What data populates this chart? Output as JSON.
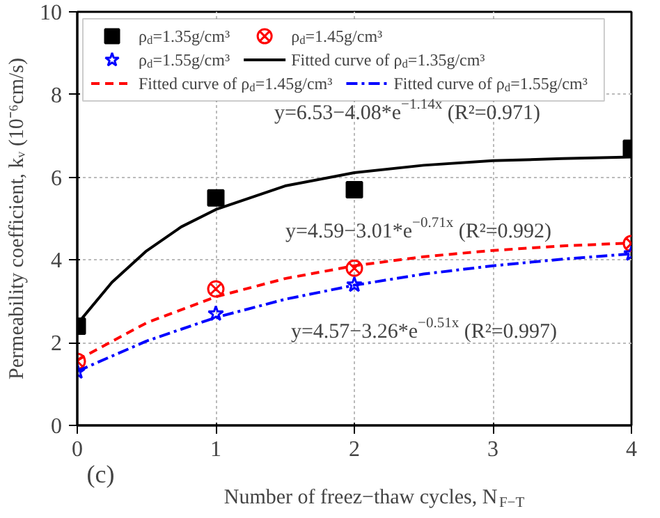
{
  "chart_data": {
    "type": "scatter",
    "xlabel": "Number of freez−thaw cycles, N$_{F−T}$",
    "ylabel": "Permeability coefficient, kᵥ (10⁻⁶cm/s)",
    "xlim": [
      0,
      4
    ],
    "xticks": [
      0,
      1,
      2,
      3,
      4
    ],
    "ylim": [
      0,
      10
    ],
    "yticks": [
      0,
      2,
      4,
      6,
      8,
      10
    ],
    "grid": true,
    "legend": "top",
    "series": [
      {
        "name": "ρ$_{d}$=1.35g/cm³",
        "marker": "square",
        "color": "#000000",
        "x": [
          0,
          1,
          2,
          4
        ],
        "values": [
          2.4,
          5.5,
          5.7,
          6.7
        ]
      },
      {
        "name": "ρ$_{d}$=1.45g/cm³",
        "marker": "cross",
        "color": "#ff0000",
        "x": [
          0,
          1,
          2,
          4
        ],
        "values": [
          1.55,
          3.3,
          3.8,
          4.4
        ]
      },
      {
        "name": "ρ$_{d}$=1.55g/cm³",
        "marker": "star",
        "color": "#0000ff",
        "x": [
          0,
          1,
          2,
          4
        ],
        "values": [
          1.3,
          2.7,
          3.4,
          4.15
        ]
      },
      {
        "name": "Fitted curve of ρ$_{d}$=1.35g/cm³",
        "type": "line",
        "line_style": "solid",
        "color": "#000000",
        "x": [
          0,
          0.25,
          0.5,
          0.75,
          1,
          1.5,
          2,
          2.5,
          3,
          3.5,
          4
        ],
        "values": [
          2.45,
          3.46,
          4.22,
          4.8,
          5.22,
          5.79,
          6.11,
          6.29,
          6.4,
          6.45,
          6.49
        ]
      },
      {
        "name": "Fitted curve of ρ$_{d}$=1.45g/cm³",
        "type": "line",
        "line_style": "dashed",
        "color": "#ff0000",
        "x": [
          0,
          0.5,
          1,
          1.5,
          2,
          2.5,
          3,
          3.5,
          4
        ],
        "values": [
          1.58,
          2.48,
          3.11,
          3.55,
          3.86,
          4.08,
          4.23,
          4.34,
          4.41
        ]
      },
      {
        "name": "Fitted curve of ρ$_{d}$=1.55g/cm³",
        "type": "line",
        "line_style": "dashdot",
        "color": "#0000ff",
        "x": [
          0,
          0.5,
          1,
          1.5,
          2,
          2.5,
          3,
          3.5,
          4
        ],
        "values": [
          1.31,
          2.04,
          2.61,
          3.05,
          3.39,
          3.66,
          3.86,
          4.02,
          4.15
        ]
      }
    ],
    "annotations": [
      "y=6.53−4.08*e$^{−1.14x}$ (R²=0.971)",
      "y=4.59−3.01*e$^{−0.71x}$ (R²=0.992)",
      "y=4.57−3.26*e$^{−0.51x}$ (R²=0.997)",
      "(c)"
    ]
  }
}
